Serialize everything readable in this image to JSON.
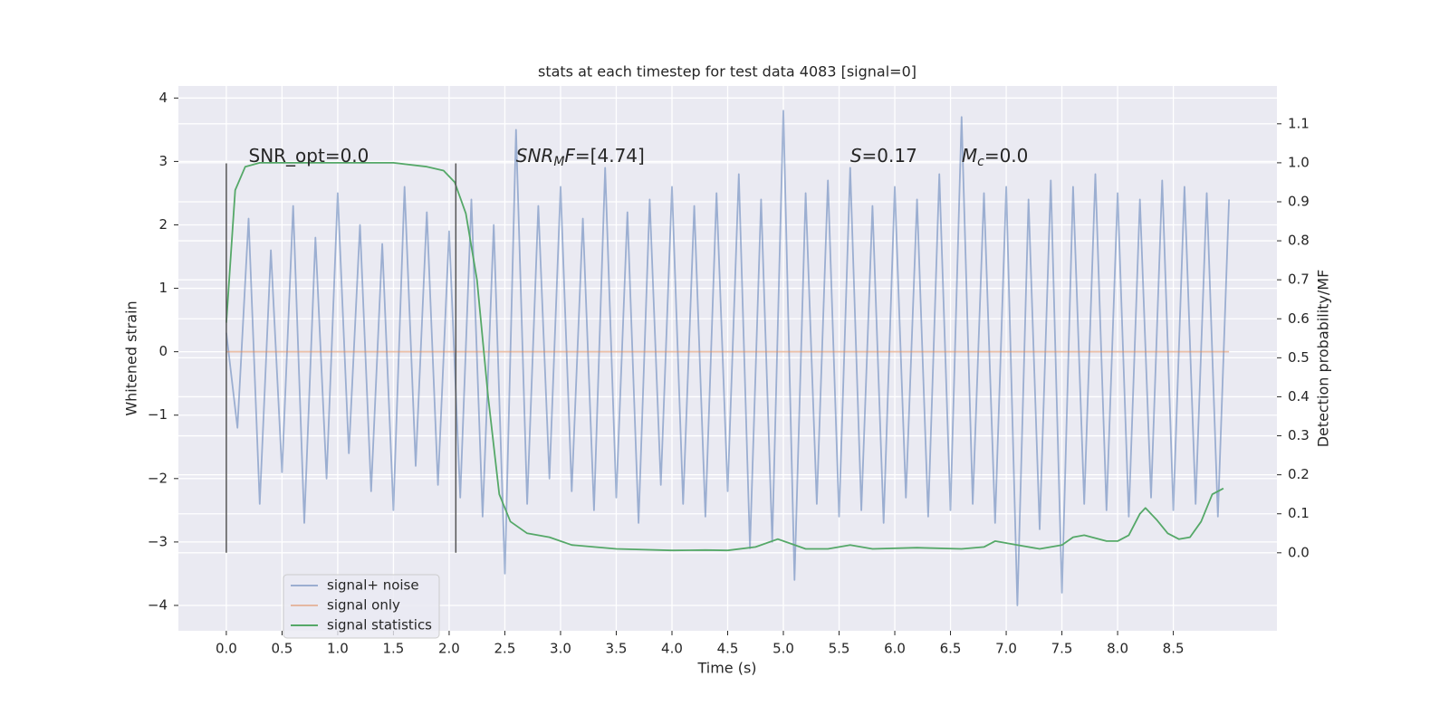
{
  "chart_data": {
    "type": "line",
    "title": "stats at each timestep for test data 4083 [signal=0]",
    "xlabel": "Time (s)",
    "ylabel": "Whitened strain",
    "y2label": "Detection probability/MF",
    "xlim": [
      -0.43,
      9.43
    ],
    "ylim": [
      -4.4,
      4.19
    ],
    "y2lim": [
      -0.2,
      1.197
    ],
    "xticks": [
      {
        "value": 0,
        "label": "0.0"
      },
      0.5,
      {
        "value": 1,
        "label": "1.0"
      },
      1.5,
      {
        "value": 2,
        "label": "2.0"
      },
      2.5,
      {
        "value": 3,
        "label": "3.0"
      },
      3.5,
      {
        "value": 4,
        "label": "4.0"
      },
      4.5,
      {
        "value": 5,
        "label": "5.0"
      },
      5.5,
      {
        "value": 6,
        "label": "6.0"
      },
      6.5,
      {
        "value": 7,
        "label": "7.0"
      },
      7.5,
      {
        "value": 8,
        "label": "8.0"
      },
      8.5
    ],
    "yticks": [
      {
        "value": -4,
        "label": "−4"
      },
      {
        "value": -3,
        "label": "−3"
      },
      {
        "value": -2,
        "label": "−2"
      },
      {
        "value": -1,
        "label": "−1"
      },
      0,
      1,
      2,
      3,
      4
    ],
    "y2ticks": [
      {
        "value": 0,
        "label": "0.0"
      },
      0.1,
      0.2,
      0.3,
      0.4,
      0.5,
      0.6,
      0.7,
      0.8,
      0.9,
      {
        "value": 1,
        "label": "1.0"
      },
      1.1
    ],
    "grid": true,
    "legend": "lower left",
    "series": [
      {
        "name": "signal+ noise",
        "color": "#4c72b0",
        "alpha": 0.5,
        "x": [
          0,
          0.1,
          0.2,
          0.3,
          0.4,
          0.5,
          0.6,
          0.7,
          0.8,
          0.9,
          1,
          1.1,
          1.2,
          1.3,
          1.4,
          1.5,
          1.6,
          1.7,
          1.8,
          1.9,
          2,
          2.1,
          2.2,
          2.3,
          2.4,
          2.5,
          2.6,
          2.7,
          2.8,
          2.9,
          3,
          3.1,
          3.2,
          3.3,
          3.4,
          3.5,
          3.6,
          3.7,
          3.8,
          3.9,
          4,
          4.1,
          4.2,
          4.3,
          4.4,
          4.5,
          4.6,
          4.7,
          4.8,
          4.9,
          5,
          5.1,
          5.2,
          5.3,
          5.4,
          5.5,
          5.6,
          5.7,
          5.8,
          5.9,
          6,
          6.1,
          6.2,
          6.3,
          6.4,
          6.5,
          6.6,
          6.7,
          6.8,
          6.9,
          7,
          7.1,
          7.2,
          7.3,
          7.4,
          7.5,
          7.6,
          7.7,
          7.8,
          7.9,
          8,
          8.1,
          8.2,
          8.3,
          8.4,
          8.5,
          8.6,
          8.7,
          8.8,
          8.9,
          9
        ],
        "values": [
          0.3,
          -1.2,
          2.1,
          -2.4,
          1.6,
          -1.9,
          2.3,
          -2.7,
          1.8,
          -2.0,
          2.5,
          -1.6,
          2.0,
          -2.2,
          1.7,
          -2.5,
          2.6,
          -1.8,
          2.2,
          -2.1,
          1.9,
          -2.3,
          2.4,
          -2.6,
          2.0,
          -3.5,
          3.5,
          -2.4,
          2.3,
          -2.0,
          2.6,
          -2.2,
          2.1,
          -2.5,
          2.9,
          -2.3,
          2.2,
          -2.7,
          2.4,
          -2.1,
          2.6,
          -2.4,
          2.3,
          -2.6,
          2.5,
          -2.2,
          2.8,
          -3.1,
          2.4,
          -3.0,
          3.8,
          -3.6,
          2.5,
          -2.4,
          2.7,
          -2.6,
          2.9,
          -2.5,
          2.3,
          -2.7,
          2.6,
          -2.3,
          2.4,
          -2.6,
          2.8,
          -2.5,
          3.7,
          -2.4,
          2.5,
          -2.7,
          2.6,
          -4.0,
          2.4,
          -2.8,
          2.7,
          -3.8,
          2.6,
          -2.4,
          2.8,
          -2.5,
          2.5,
          -2.6,
          2.4,
          -2.3,
          2.7,
          -2.5,
          2.6,
          -2.4,
          2.5,
          -2.6,
          2.4
        ]
      },
      {
        "name": "signal only",
        "color": "#dd8452",
        "alpha": 0.5,
        "x": [
          0,
          9
        ],
        "values": [
          0,
          0
        ]
      },
      {
        "name": "signal statistics",
        "color": "#55a868",
        "alpha": 1,
        "axis": "y2",
        "x": [
          0,
          0.08,
          0.17,
          0.3,
          1.0,
          1.5,
          1.8,
          1.95,
          2.05,
          2.15,
          2.25,
          2.35,
          2.45,
          2.55,
          2.7,
          2.9,
          3.1,
          3.5,
          4.0,
          4.3,
          4.5,
          4.75,
          4.95,
          5.05,
          5.2,
          5.4,
          5.6,
          5.8,
          6.2,
          6.6,
          6.8,
          6.9,
          7.1,
          7.3,
          7.5,
          7.6,
          7.7,
          7.9,
          8.0,
          8.1,
          8.2,
          8.25,
          8.35,
          8.45,
          8.55,
          8.65,
          8.75,
          8.85,
          8.95
        ],
        "values": [
          0.59,
          0.93,
          0.99,
          1.0,
          1.0,
          1.0,
          0.99,
          0.98,
          0.95,
          0.87,
          0.7,
          0.4,
          0.15,
          0.08,
          0.05,
          0.04,
          0.02,
          0.01,
          0.006,
          0.007,
          0.006,
          0.015,
          0.035,
          0.025,
          0.01,
          0.01,
          0.02,
          0.01,
          0.013,
          0.01,
          0.015,
          0.03,
          0.02,
          0.01,
          0.02,
          0.04,
          0.045,
          0.03,
          0.03,
          0.045,
          0.1,
          0.115,
          0.085,
          0.05,
          0.035,
          0.04,
          0.08,
          0.15,
          0.165
        ]
      }
    ],
    "vlines": [
      {
        "x": 0,
        "ymin": -3.17,
        "ymax": 2.97,
        "color": "#555555"
      },
      {
        "x": 2.06,
        "ymin": -3.17,
        "ymax": 2.97,
        "color": "#555555"
      }
    ],
    "annotations": [
      {
        "x": 0.2,
        "y": 3.08,
        "parts": [
          {
            "text": "SNR_opt=0.0",
            "style": "normal"
          }
        ]
      },
      {
        "x": 2.6,
        "y": 3.08,
        "parts": [
          {
            "text": "SNR",
            "style": "italic"
          },
          {
            "text": "M",
            "style": "sub"
          },
          {
            "text": "F",
            "style": "italic"
          },
          {
            "text": "=[4.74]",
            "style": "normal"
          }
        ]
      },
      {
        "x": 5.6,
        "y": 3.08,
        "parts": [
          {
            "text": "S",
            "style": "italic"
          },
          {
            "text": "=0.17",
            "style": "normal"
          }
        ]
      },
      {
        "x": 6.6,
        "y": 3.08,
        "parts": [
          {
            "text": "M",
            "style": "italic"
          },
          {
            "text": "c",
            "style": "sub"
          },
          {
            "text": "=0.0",
            "style": "normal"
          }
        ]
      }
    ]
  }
}
